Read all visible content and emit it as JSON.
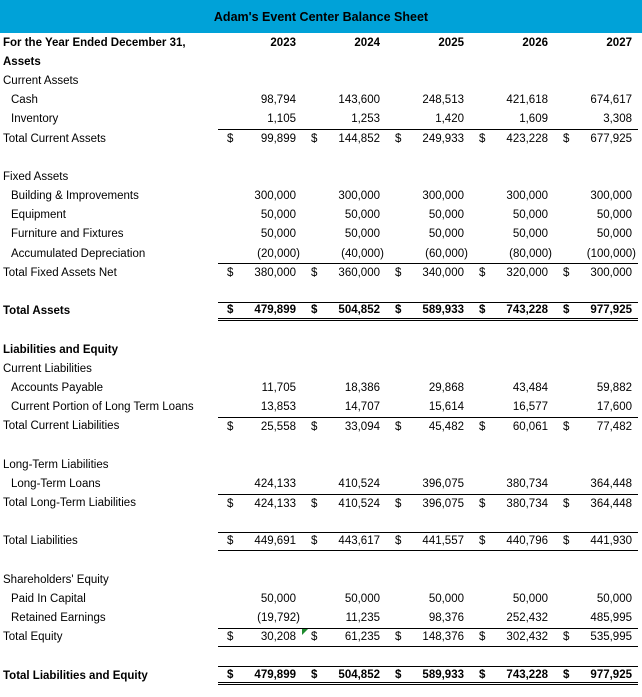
{
  "title": "Adam's Event Center Balance Sheet",
  "currency_symbol": "$",
  "colors": {
    "header_bg": "#00A2D8",
    "text": "#000000",
    "border": "#000000",
    "error_triangle_green": "#1E8A2E"
  },
  "header": {
    "label": "For the Year Ended December 31,",
    "years": [
      "2023",
      "2024",
      "2025",
      "2026",
      "2027"
    ]
  },
  "rows": [
    {
      "label": "Assets",
      "bold": true
    },
    {
      "label": "Current Assets"
    },
    {
      "label": "Cash",
      "indent": true,
      "values": [
        "98,794",
        "143,600",
        "248,513",
        "421,618",
        "674,617"
      ]
    },
    {
      "label": "Inventory",
      "indent": true,
      "values": [
        "1,105",
        "1,253",
        "1,420",
        "1,609",
        "3,308"
      ]
    },
    {
      "label": "Total Current Assets",
      "dollar": true,
      "border_top": true,
      "values": [
        "99,899",
        "144,852",
        "249,933",
        "423,228",
        "677,925"
      ]
    },
    {
      "label": ""
    },
    {
      "label": "Fixed Assets"
    },
    {
      "label": "Building & Improvements",
      "indent": true,
      "values": [
        "300,000",
        "300,000",
        "300,000",
        "300,000",
        "300,000"
      ]
    },
    {
      "label": "Equipment",
      "indent": true,
      "values": [
        "50,000",
        "50,000",
        "50,000",
        "50,000",
        "50,000"
      ]
    },
    {
      "label": "Furniture and Fixtures",
      "indent": true,
      "values": [
        "50,000",
        "50,000",
        "50,000",
        "50,000",
        "50,000"
      ]
    },
    {
      "label": "Accumulated Depreciation",
      "indent": true,
      "values": [
        "(20,000)",
        "(40,000)",
        "(60,000)",
        "(80,000)",
        "(100,000)"
      ]
    },
    {
      "label": "Total Fixed Assets Net",
      "dollar": true,
      "border_top": true,
      "values": [
        "380,000",
        "360,000",
        "340,000",
        "320,000",
        "300,000"
      ]
    },
    {
      "label": ""
    },
    {
      "label": "Total Assets",
      "bold": true,
      "dollar": true,
      "border_top": true,
      "border_bottom": "double",
      "values": [
        "479,899",
        "504,852",
        "589,933",
        "743,228",
        "977,925"
      ]
    },
    {
      "label": ""
    },
    {
      "label": "Liabilities and Equity",
      "bold": true
    },
    {
      "label": "Current Liabilities"
    },
    {
      "label": "Accounts Payable",
      "indent": true,
      "values": [
        "11,705",
        "18,386",
        "29,868",
        "43,484",
        "59,882"
      ]
    },
    {
      "label": "Current Portion of Long Term Loans",
      "indent": true,
      "values": [
        "13,853",
        "14,707",
        "15,614",
        "16,577",
        "17,600"
      ]
    },
    {
      "label": "Total Current Liabilities",
      "dollar": true,
      "border_top": true,
      "values": [
        "25,558",
        "33,094",
        "45,482",
        "60,061",
        "77,482"
      ]
    },
    {
      "label": ""
    },
    {
      "label": "Long-Term Liabilities"
    },
    {
      "label": "Long-Term Loans",
      "indent": true,
      "values": [
        "424,133",
        "410,524",
        "396,075",
        "380,734",
        "364,448"
      ]
    },
    {
      "label": "Total Long-Term Liabilities",
      "dollar": true,
      "border_top": true,
      "values": [
        "424,133",
        "410,524",
        "396,075",
        "380,734",
        "364,448"
      ]
    },
    {
      "label": ""
    },
    {
      "label": "Total Liabilities",
      "dollar": true,
      "border_top": true,
      "border_bottom": "single",
      "values": [
        "449,691",
        "443,617",
        "441,557",
        "440,796",
        "441,930"
      ]
    },
    {
      "label": ""
    },
    {
      "label": "Shareholders' Equity"
    },
    {
      "label": "Paid In Capital",
      "indent": true,
      "values": [
        "50,000",
        "50,000",
        "50,000",
        "50,000",
        "50,000"
      ]
    },
    {
      "label": "Retained Earnings",
      "indent": true,
      "values": [
        "(19,792)",
        "11,235",
        "98,376",
        "252,432",
        "485,995"
      ]
    },
    {
      "label": "Total Equity",
      "dollar": true,
      "border_top": true,
      "border_bottom": "single",
      "triangle_col": 1,
      "values": [
        "30,208",
        "61,235",
        "148,376",
        "302,432",
        "535,995"
      ]
    },
    {
      "label": ""
    },
    {
      "label": "Total Liabilities and Equity",
      "bold": true,
      "dollar": true,
      "border_top": true,
      "border_bottom": "double",
      "values": [
        "479,899",
        "504,852",
        "589,933",
        "743,228",
        "977,925"
      ]
    }
  ]
}
